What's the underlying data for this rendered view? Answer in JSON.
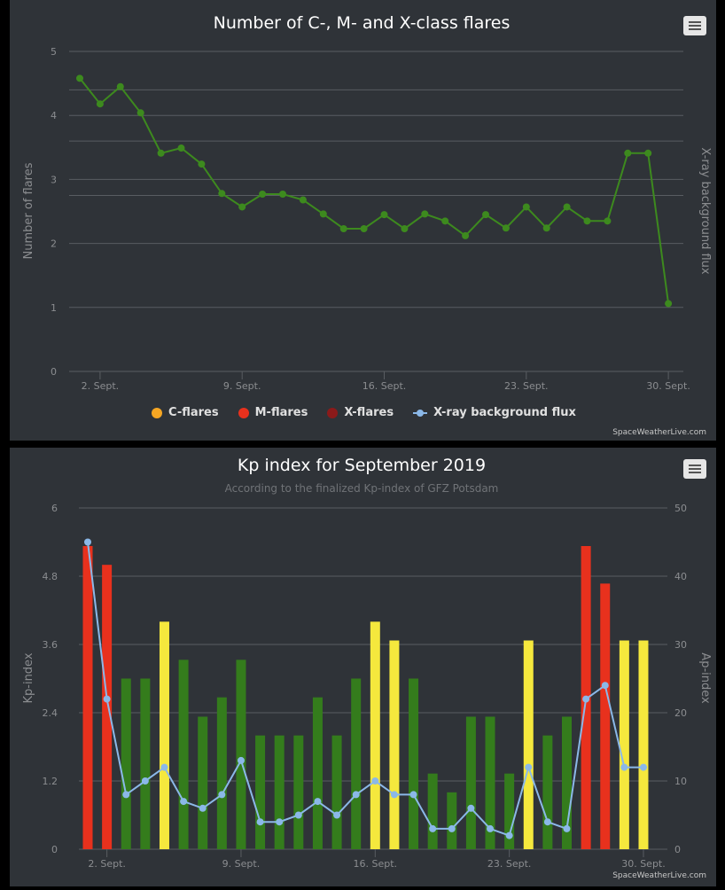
{
  "colors": {
    "panel": "#2f3338",
    "grid": "#595d62",
    "axis_text": "#8b8d90",
    "title": "#ffffff",
    "flare_line": "#3d8a1e",
    "flux_line": "#8bb8e8",
    "c_flare": "#f5a623",
    "m_flare": "#e8311d",
    "x_flare": "#7a1414",
    "kp_green": "#347c1c",
    "kp_yellow": "#f5e83d",
    "kp_red": "#e8311d"
  },
  "flares": {
    "menu_label": "Chart context menu",
    "legend": [
      {
        "label": "C-flares",
        "color": "#f5a623",
        "kind": "dot"
      },
      {
        "label": "M-flares",
        "color": "#e8311d",
        "kind": "dot"
      },
      {
        "label": "X-flares",
        "color": "#8b1a1a",
        "kind": "dot"
      },
      {
        "label": "X-ray background flux",
        "color": "#8bb8e8",
        "kind": "line"
      }
    ],
    "credit": "SpaceWeatherLive.com"
  },
  "kp": {
    "menu_label": "Chart context menu",
    "credit": "SpaceWeatherLive.com"
  },
  "chart_data": [
    {
      "type": "line",
      "title": "Number of C-, M- and X-class flares",
      "ylabel": "Number of flares",
      "y2label": "X-ray background flux",
      "ylim": [
        0,
        5
      ],
      "yticks": [
        0,
        1,
        2,
        3,
        4,
        5
      ],
      "xlim": [
        1,
        30
      ],
      "xticks": [
        {
          "day": 2,
          "label": "2. Sept."
        },
        {
          "day": 9,
          "label": "9. Sept."
        },
        {
          "day": 16,
          "label": "16. Sept."
        },
        {
          "day": 23,
          "label": "23. Sept."
        },
        {
          "day": 30,
          "label": "30. Sept."
        }
      ],
      "y2_gridlines": [
        4.4,
        3.6,
        2.75
      ],
      "series": [
        {
          "name": "X-ray background flux",
          "x": [
            1,
            2,
            3,
            4,
            5,
            6,
            7,
            8,
            9,
            10,
            11,
            12,
            13,
            14,
            15,
            16,
            17,
            18,
            19,
            20,
            21,
            22,
            23,
            24,
            25,
            26,
            27,
            28,
            29,
            30
          ],
          "values": [
            4.58,
            4.18,
            4.45,
            4.04,
            3.41,
            3.49,
            3.24,
            2.78,
            2.57,
            2.77,
            2.77,
            2.68,
            2.46,
            2.23,
            2.23,
            2.45,
            2.23,
            2.46,
            2.35,
            2.12,
            2.45,
            2.24,
            2.57,
            2.24,
            2.57,
            2.35,
            2.35,
            3.41,
            3.41,
            1.06
          ]
        }
      ]
    },
    {
      "type": "bar",
      "title": "Kp index for September 2019",
      "subtitle": "According to the finalized Kp-index of GFZ Potsdam",
      "ylabel": "Kp-index",
      "y2label": "Ap-index",
      "ylim": [
        0,
        6
      ],
      "yticks": [
        0,
        1.2,
        2.4,
        3.6,
        4.8,
        6
      ],
      "y2lim": [
        0,
        50
      ],
      "y2ticks": [
        0,
        10,
        20,
        30,
        40,
        50
      ],
      "xticks": [
        {
          "day": 2,
          "label": "2. Sept."
        },
        {
          "day": 9,
          "label": "9. Sept."
        },
        {
          "day": 16,
          "label": "16. Sept."
        },
        {
          "day": 23,
          "label": "23. Sept."
        },
        {
          "day": 30,
          "label": "30. Sept."
        }
      ],
      "series": [
        {
          "name": "Kp-index",
          "x": [
            1,
            2,
            3,
            4,
            5,
            6,
            7,
            8,
            9,
            10,
            11,
            12,
            13,
            14,
            15,
            16,
            17,
            18,
            19,
            20,
            21,
            22,
            23,
            24,
            25,
            26,
            27,
            28,
            29,
            30
          ],
          "values": [
            5.33,
            5.0,
            3.0,
            3.0,
            4.0,
            3.33,
            2.33,
            2.67,
            3.33,
            2.0,
            2.0,
            2.0,
            2.67,
            2.0,
            3.0,
            4.0,
            3.67,
            3.0,
            1.33,
            1.0,
            2.33,
            2.33,
            1.33,
            3.67,
            2.0,
            2.33,
            5.33,
            4.67,
            3.67,
            3.67
          ],
          "levels": [
            "red",
            "red",
            "green",
            "green",
            "yellow",
            "green",
            "green",
            "green",
            "green",
            "green",
            "green",
            "green",
            "green",
            "green",
            "green",
            "yellow",
            "yellow",
            "green",
            "green",
            "green",
            "green",
            "green",
            "green",
            "yellow",
            "green",
            "green",
            "red",
            "red",
            "yellow",
            "yellow"
          ]
        },
        {
          "name": "Ap-index",
          "x": [
            1,
            2,
            3,
            4,
            5,
            6,
            7,
            8,
            9,
            10,
            11,
            12,
            13,
            14,
            15,
            16,
            17,
            18,
            19,
            20,
            21,
            22,
            23,
            24,
            25,
            26,
            27,
            28,
            29,
            30
          ],
          "values": [
            45,
            22,
            8,
            10,
            12,
            7,
            6,
            8,
            13,
            4,
            4,
            5,
            7,
            5,
            8,
            10,
            8,
            8,
            3,
            3,
            6,
            3,
            2,
            12,
            4,
            3,
            22,
            24,
            12,
            12
          ]
        }
      ]
    }
  ]
}
